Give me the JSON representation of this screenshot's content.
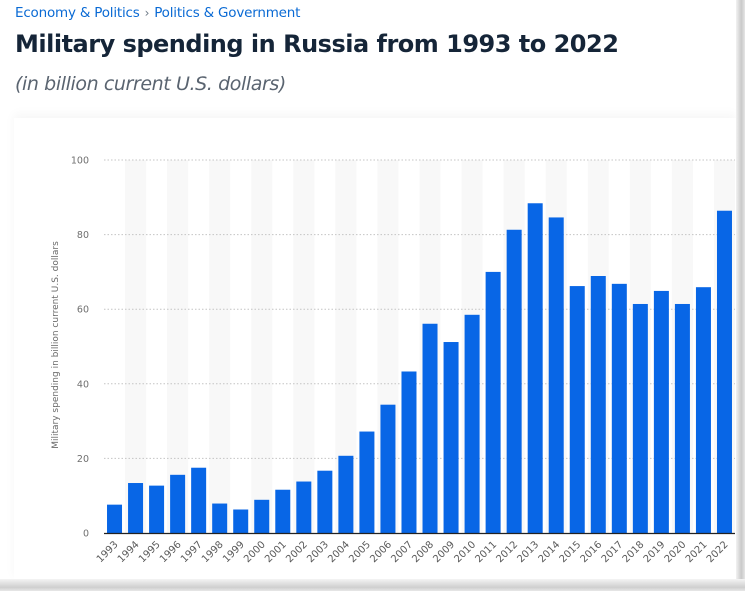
{
  "breadcrumb": {
    "items": [
      "Economy & Politics",
      "Politics & Government"
    ],
    "separator": "›"
  },
  "header": {
    "title": "Military spending in Russia from 1993 to 2022",
    "subtitle": "(in billion current U.S. dollars)"
  },
  "colors": {
    "bar": "#0866e6",
    "stripe": "#f8f8f8",
    "grid": "#c4c4c4",
    "axis": "#222222",
    "breadcrumb": "#0a6ad4",
    "title": "#152538"
  },
  "chart_data": {
    "type": "bar",
    "title": "Military spending in Russia from 1993 to 2022",
    "subtitle": "(in billion current U.S. dollars)",
    "xlabel": "",
    "ylabel": "Military spending in billion current U.S. dollars",
    "ylim": [
      0,
      100
    ],
    "yticks": [
      0,
      20,
      40,
      60,
      80,
      100
    ],
    "grid": true,
    "legend": "none",
    "categories": [
      "1993",
      "1994",
      "1995",
      "1996",
      "1997",
      "1998",
      "1999",
      "2000",
      "2001",
      "2002",
      "2003",
      "2004",
      "2005",
      "2006",
      "2007",
      "2008",
      "2009",
      "2010",
      "2011",
      "2012",
      "2013",
      "2014",
      "2015",
      "2016",
      "2017",
      "2018",
      "2019",
      "2020",
      "2021",
      "2022"
    ],
    "values": [
      7.6,
      13.4,
      12.7,
      15.6,
      17.5,
      7.9,
      6.3,
      8.9,
      11.6,
      13.8,
      16.7,
      20.7,
      27.2,
      34.4,
      43.3,
      56.1,
      51.2,
      58.5,
      70.0,
      81.3,
      88.4,
      84.6,
      66.2,
      68.9,
      66.8,
      61.4,
      64.9,
      61.4,
      65.9,
      86.4
    ]
  }
}
